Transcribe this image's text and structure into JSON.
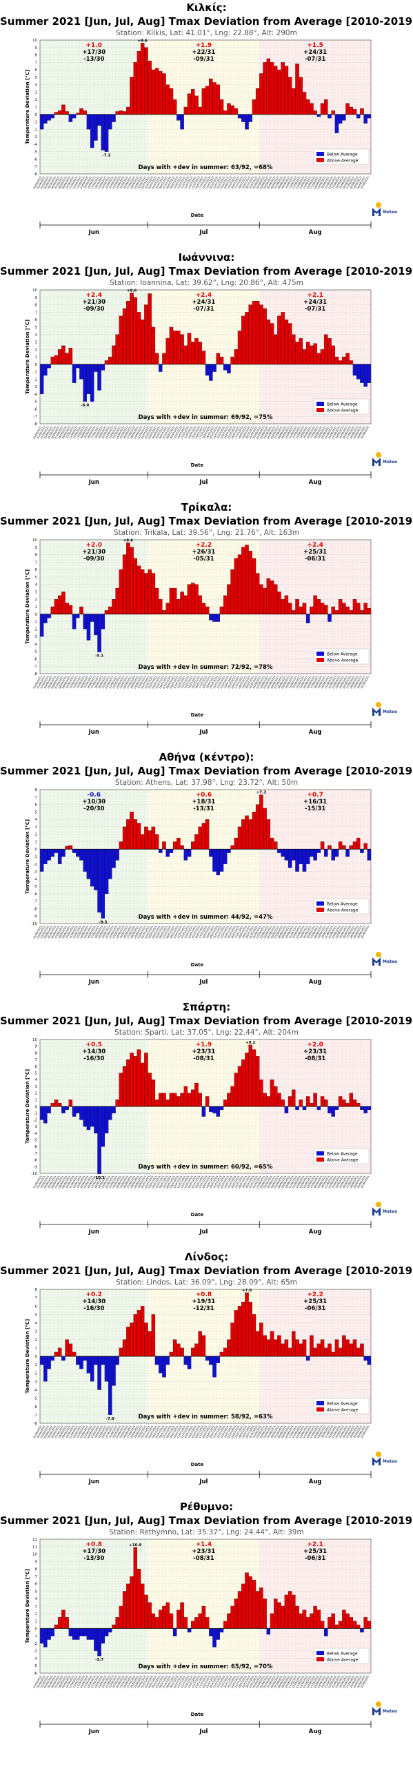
{
  "chart_title": "Summer 2021 [Jun, Jul, Aug] Tmax Deviation from Average [2010-2019]",
  "xlabel": "Date",
  "ylabel": "Temperature Deviation [°C]",
  "legend": [
    "Below Average",
    "Above Average"
  ],
  "legend_position": "bottom-right",
  "months": [
    "Jun",
    "Jul",
    "Aug"
  ],
  "logo_text": "Meteo",
  "colors": {
    "above": "#e10000",
    "below": "#1010d0",
    "jun_bg": "#eef7ea",
    "jul_bg": "#fdfbe6",
    "aug_bg": "#fdeeee"
  },
  "chart_data": [
    {
      "type": "bar",
      "city": "Κιλκίς:",
      "station": "Station: Kilkis, Lat: 41.01°, Lng: 22.88°, Alt: 290m",
      "ylim": [
        -8,
        10
      ],
      "grid": true,
      "x_start": "2021-06-01",
      "x_end": "2021-08-31",
      "summary": "Days with +dev in summer: 63/92, =68%",
      "month_stats": [
        {
          "mean": "+1.0",
          "above": "+17/30",
          "below": "-13/30"
        },
        {
          "mean": "+1.9",
          "above": "+22/31",
          "below": "-09/31"
        },
        {
          "mean": "+1.5",
          "above": "+24/31",
          "below": "-07/31"
        }
      ],
      "max_label": "+9.6",
      "min_label": "-7.2",
      "values": [
        -2.0,
        -1.2,
        -0.8,
        -0.5,
        0.3,
        0.5,
        1.3,
        0.4,
        -1.0,
        -0.5,
        0.2,
        0.8,
        0.5,
        -2.0,
        -4.5,
        -3.5,
        -1.5,
        -4.8,
        -5.0,
        -2.0,
        -1.0,
        0.4,
        0.5,
        0.4,
        1.0,
        5.0,
        7.0,
        8.5,
        9.6,
        9.0,
        7.2,
        6.0,
        6.2,
        5.8,
        5.5,
        4.0,
        3.5,
        2.0,
        -0.8,
        -2.0,
        1.0,
        2.8,
        3.4,
        2.5,
        1.0,
        3.5,
        3.8,
        4.8,
        4.3,
        4.0,
        2.0,
        0.5,
        1.5,
        1.2,
        0.8,
        -0.5,
        -1.0,
        -2.0,
        -1.0,
        2.0,
        3.5,
        5.5,
        7.0,
        7.5,
        7.0,
        6.5,
        6.0,
        7.0,
        6.5,
        5.0,
        3.5,
        6.8,
        5.0,
        3.0,
        2.0,
        1.5,
        0.5,
        -0.3,
        1.5,
        2.0,
        -0.5,
        0.5,
        -2.5,
        -1.2,
        -0.8,
        1.5,
        1.0,
        0.7,
        -0.5,
        0.8,
        -1.2,
        -0.5
      ]
    },
    {
      "type": "bar",
      "city": "Ιωάννινα:",
      "station": "Station: Ioannina, Lat: 39.62°, Lng: 20.86°, Alt: 475m",
      "ylim": [
        -8,
        10
      ],
      "grid": true,
      "x_start": "2021-06-01",
      "x_end": "2021-08-31",
      "summary": "Days with +dev in summer: 69/92, =75%",
      "month_stats": [
        {
          "mean": "+2.4",
          "above": "+21/30",
          "below": "-09/30"
        },
        {
          "mean": "+2.4",
          "above": "+24/31",
          "below": "-07/31"
        },
        {
          "mean": "+2.1",
          "above": "+24/31",
          "below": "-07/31"
        }
      ],
      "max_label": "+9.6",
      "min_label": "-6.0",
      "values": [
        -4.0,
        -1.5,
        -0.5,
        1.0,
        1.2,
        2.0,
        2.5,
        1.5,
        2.2,
        -2.5,
        -0.5,
        -2.0,
        -5.0,
        -4.0,
        -5.0,
        -1.0,
        -3.5,
        -0.8,
        0.5,
        1.0,
        2.5,
        4.0,
        6.5,
        7.5,
        8.5,
        9.6,
        9.0,
        7.0,
        6.0,
        8.0,
        9.5,
        5.0,
        1.5,
        -1.0,
        1.5,
        3.5,
        5.0,
        4.5,
        4.5,
        4.0,
        2.5,
        4.2,
        3.0,
        3.5,
        3.0,
        1.8,
        -1.5,
        -2.2,
        -1.0,
        1.5,
        1.0,
        -0.8,
        -1.2,
        1.0,
        2.0,
        4.5,
        6.5,
        7.0,
        8.0,
        8.5,
        8.5,
        8.0,
        7.5,
        6.0,
        5.5,
        4.0,
        6.5,
        7.0,
        6.0,
        5.5,
        4.0,
        3.0,
        3.5,
        2.0,
        3.0,
        2.5,
        2.8,
        1.5,
        2.0,
        4.0,
        3.5,
        2.5,
        1.0,
        0.5,
        1.0,
        1.5,
        0.5,
        -1.5,
        -2.0,
        -2.5,
        -3.0,
        -2.5
      ]
    },
    {
      "type": "bar",
      "city": "Τρίκαλα:",
      "station": "Station: Trikala, Lat: 39.56°, Lng: 21.76°, Alt: 163m",
      "ylim": [
        -8,
        10
      ],
      "grid": true,
      "x_start": "2021-06-01",
      "x_end": "2021-08-31",
      "summary": "Days with +dev in summer: 72/92, =78%",
      "month_stats": [
        {
          "mean": "+2.0",
          "above": "+21/30",
          "below": "-09/30"
        },
        {
          "mean": "+2.2",
          "above": "+26/31",
          "below": "-05/31"
        },
        {
          "mean": "+2.4",
          "above": "+25/31",
          "below": "-06/31"
        }
      ],
      "max_label": "+9.6",
      "min_label": "-5.1",
      "values": [
        -3.0,
        -1.2,
        -0.5,
        1.0,
        2.0,
        2.5,
        3.0,
        1.5,
        1.2,
        -2.0,
        -0.5,
        1.0,
        -2.0,
        -3.5,
        -1.0,
        -2.8,
        -5.1,
        -2.0,
        0.5,
        1.0,
        2.0,
        3.5,
        6.0,
        8.0,
        9.6,
        9.0,
        7.5,
        6.5,
        6.0,
        5.5,
        6.0,
        5.5,
        3.5,
        2.0,
        0.5,
        1.5,
        3.5,
        3.5,
        2.0,
        3.0,
        2.5,
        4.0,
        4.2,
        4.0,
        2.5,
        1.5,
        1.0,
        -0.8,
        -1.0,
        -1.0,
        1.0,
        2.5,
        4.0,
        6.0,
        7.5,
        8.0,
        9.0,
        9.3,
        8.5,
        7.5,
        5.5,
        4.0,
        3.5,
        4.8,
        4.5,
        4.0,
        3.0,
        2.0,
        2.5,
        1.5,
        0.5,
        2.0,
        1.0,
        1.5,
        -1.2,
        1.0,
        2.5,
        2.0,
        1.5,
        1.2,
        -1.0,
        1.0,
        0.5,
        2.0,
        1.5,
        1.0,
        0.5,
        2.0,
        1.5,
        0.5,
        1.5,
        0.8
      ]
    },
    {
      "type": "bar",
      "city": "Αθήνα (κέντρο):",
      "station": "Station: Athens, Lat: 37.98°, Lng: 23.72°, Alt: 50m",
      "ylim": [
        -10,
        8
      ],
      "grid": true,
      "x_start": "2021-06-01",
      "x_end": "2021-08-31",
      "summary": "Days with +dev in summer: 44/92, =47%",
      "month_stats": [
        {
          "mean": "-0.6",
          "above": "+10/30",
          "below": "-20/30"
        },
        {
          "mean": "+0.6",
          "above": "+18/31",
          "below": "-13/31"
        },
        {
          "mean": "+0.7",
          "above": "+16/31",
          "below": "-15/31"
        }
      ],
      "max_label": "+7.3",
      "min_label": "-9.3",
      "values": [
        -3.0,
        -2.0,
        -1.5,
        -1.0,
        -0.5,
        -2.0,
        -1.0,
        0.4,
        0.5,
        -0.5,
        -1.0,
        -1.5,
        -3.0,
        -4.0,
        -5.0,
        -5.5,
        -8.5,
        -9.3,
        -6.0,
        -4.0,
        -2.5,
        -1.5,
        1.0,
        3.0,
        4.0,
        5.0,
        4.0,
        3.5,
        2.0,
        3.0,
        2.5,
        3.0,
        2.0,
        -0.5,
        1.0,
        -1.0,
        -0.5,
        1.0,
        1.5,
        0.5,
        -1.5,
        -1.0,
        1.0,
        2.0,
        3.0,
        3.5,
        4.0,
        -1.0,
        -3.0,
        -3.5,
        -3.0,
        -2.0,
        -0.5,
        0.5,
        1.5,
        3.0,
        4.0,
        4.5,
        4.0,
        5.0,
        6.0,
        7.3,
        5.5,
        4.0,
        1.5,
        1.0,
        -0.5,
        -1.0,
        -1.5,
        -2.5,
        -1.5,
        -3.0,
        -2.0,
        -3.0,
        -2.0,
        -1.0,
        -1.5,
        -0.5,
        1.0,
        -1.0,
        0.5,
        -1.5,
        -1.0,
        1.0,
        0.5,
        -1.0,
        0.5,
        1.0,
        1.5,
        -0.5,
        0.8,
        -1.5
      ]
    },
    {
      "type": "bar",
      "city": "Σπάρτη:",
      "station": "Station: Sparti, Lat: 37.05°, Lng: 22.44°, Alt: 204m",
      "ylim": [
        -10,
        10
      ],
      "grid": true,
      "x_start": "2021-06-01",
      "x_end": "2021-08-31",
      "summary": "Days with +dev in summer: 60/92, =65%",
      "month_stats": [
        {
          "mean": "+0.5",
          "above": "+14/30",
          "below": "-16/30"
        },
        {
          "mean": "+1.9",
          "above": "+23/31",
          "below": "-08/31"
        },
        {
          "mean": "+2.0",
          "above": "+23/31",
          "below": "-08/31"
        }
      ],
      "max_label": "+9.2",
      "min_label": "-10.1",
      "values": [
        -2.0,
        -2.5,
        -1.0,
        0.5,
        1.0,
        0.5,
        -1.0,
        -0.5,
        1.0,
        -1.5,
        -1.0,
        -2.0,
        -3.0,
        -3.5,
        -3.0,
        -4.0,
        -10.1,
        -6.0,
        -4.0,
        -2.0,
        -1.0,
        1.0,
        5.0,
        6.0,
        7.0,
        8.0,
        7.5,
        8.5,
        6.5,
        8.0,
        5.0,
        4.0,
        1.0,
        2.0,
        2.0,
        1.0,
        2.0,
        2.0,
        1.5,
        2.0,
        3.0,
        2.0,
        2.5,
        3.5,
        2.0,
        -1.5,
        1.5,
        -0.8,
        -1.0,
        -1.5,
        -0.5,
        1.0,
        2.0,
        3.0,
        5.0,
        6.0,
        7.0,
        8.0,
        9.2,
        8.5,
        7.5,
        4.0,
        2.0,
        1.5,
        4.0,
        3.0,
        2.0,
        1.0,
        -1.0,
        1.5,
        2.5,
        -0.5,
        1.0,
        -0.5,
        1.5,
        0.5,
        2.0,
        -0.5,
        1.5,
        1.0,
        -1.0,
        -1.5,
        -0.5,
        1.5,
        1.0,
        0.5,
        2.0,
        1.0,
        0.5,
        -0.5,
        -1.0,
        -0.5
      ]
    },
    {
      "type": "bar",
      "city": "Λίνδος:",
      "station": "Station: Lindos, Lat: 36.09°, Lng: 28.09°, Alt: 65m",
      "ylim": [
        -8,
        8
      ],
      "grid": true,
      "x_start": "2021-06-01",
      "x_end": "2021-08-31",
      "summary": "Days with +dev in summer: 58/92, =63%",
      "month_stats": [
        {
          "mean": "+0.2",
          "above": "+14/30",
          "below": "-16/30"
        },
        {
          "mean": "+0.8",
          "above": "+19/31",
          "below": "-12/31"
        },
        {
          "mean": "+2.2",
          "above": "+25/31",
          "below": "-06/31"
        }
      ],
      "max_label": "+7.6",
      "min_label": "-7.0",
      "values": [
        -1.0,
        -3.0,
        -1.5,
        -0.5,
        0.5,
        1.0,
        -0.5,
        2.0,
        1.5,
        0.5,
        -1.0,
        -1.5,
        -0.5,
        -2.0,
        -3.0,
        -1.0,
        -4.0,
        -1.0,
        -3.0,
        -7.0,
        -3.5,
        -1.0,
        1.0,
        2.0,
        3.5,
        4.0,
        5.0,
        5.5,
        6.0,
        4.0,
        3.0,
        5.0,
        -1.0,
        -2.0,
        -2.5,
        -1.0,
        0.5,
        2.0,
        1.5,
        1.0,
        -1.0,
        -1.5,
        1.0,
        1.5,
        3.0,
        2.5,
        -0.5,
        -1.0,
        -2.5,
        -0.8,
        0.5,
        1.0,
        2.0,
        4.0,
        5.5,
        6.0,
        6.5,
        7.6,
        6.5,
        5.0,
        3.0,
        4.0,
        2.5,
        2.0,
        3.0,
        2.0,
        2.5,
        1.5,
        2.0,
        1.0,
        3.0,
        2.0,
        1.5,
        2.0,
        -0.5,
        2.5,
        1.0,
        1.5,
        2.0,
        1.0,
        1.5,
        0.5,
        2.0,
        1.0,
        2.5,
        2.0,
        1.5,
        2.0,
        1.0,
        1.5,
        -0.5,
        -1.0
      ]
    },
    {
      "type": "bar",
      "city": "Ρέθυμνο:",
      "station": "Station: Rethymno, Lat: 35.37°, Lng: 24.44°, Alt: 39m",
      "ylim": [
        -6,
        12
      ],
      "grid": true,
      "x_start": "2021-06-01",
      "x_end": "2021-08-31",
      "summary": "Days with +dev in summer: 65/92, =70%",
      "month_stats": [
        {
          "mean": "+0.8",
          "above": "+17/30",
          "below": "-13/30"
        },
        {
          "mean": "+1.4",
          "above": "+23/31",
          "below": "-08/31"
        },
        {
          "mean": "+2.1",
          "above": "+25/31",
          "below": "-06/31"
        }
      ],
      "max_label": "+10.9",
      "min_label": "-3.7",
      "values": [
        -2.0,
        -2.5,
        -1.5,
        -1.0,
        0.5,
        1.5,
        2.5,
        1.5,
        -1.0,
        -1.5,
        -1.5,
        -1.0,
        -1.0,
        -1.5,
        -1.5,
        -3.0,
        -3.7,
        -2.0,
        -1.0,
        -0.5,
        0.5,
        1.5,
        3.0,
        5.0,
        6.0,
        7.0,
        10.9,
        8.0,
        6.0,
        4.5,
        3.5,
        2.0,
        1.5,
        2.5,
        3.0,
        3.5,
        2.0,
        -1.0,
        2.5,
        3.5,
        1.5,
        -0.5,
        1.0,
        1.5,
        2.0,
        3.0,
        1.5,
        -1.0,
        -2.5,
        -1.5,
        -0.5,
        1.0,
        2.0,
        3.0,
        4.0,
        5.0,
        6.0,
        7.5,
        7.0,
        6.5,
        5.0,
        5.5,
        4.0,
        -0.8,
        2.0,
        4.0,
        3.5,
        3.0,
        4.5,
        5.0,
        4.5,
        3.0,
        2.0,
        2.5,
        1.5,
        2.0,
        3.0,
        2.5,
        1.0,
        -1.0,
        1.5,
        2.0,
        0.5,
        1.0,
        2.5,
        2.0,
        1.5,
        1.0,
        0.5,
        -0.5,
        1.5,
        1.0
      ]
    }
  ]
}
